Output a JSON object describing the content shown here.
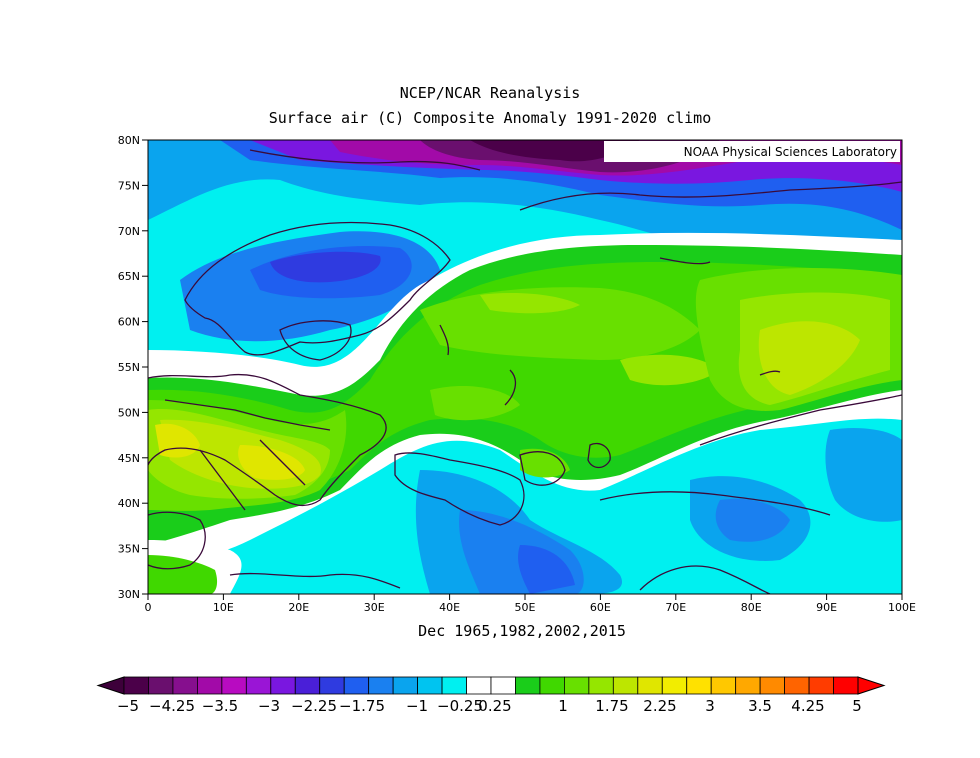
{
  "title_line1": "NCEP/NCAR Reanalysis",
  "title_line2": "Surface air (C) Composite Anomaly 1991-2020 climo",
  "source_label": "NOAA Physical Sciences Laboratory",
  "subtitle": "Dec 1965,1982,2002,2015",
  "lat_labels": [
    "80N",
    "75N",
    "70N",
    "65N",
    "60N",
    "55N",
    "50N",
    "45N",
    "40N",
    "35N",
    "30N"
  ],
  "lon_labels": [
    "0",
    "10E",
    "20E",
    "30E",
    "40E",
    "50E",
    "60E",
    "70E",
    "80E",
    "90E",
    "100E"
  ],
  "colorbar": {
    "labels": [
      "-5",
      "-4.25",
      "-3.5",
      "-3",
      "-2.25",
      "-1.75",
      "-1",
      "-0.25",
      "0.25",
      "1",
      "1.75",
      "2.25",
      "3",
      "3.5",
      "4.25",
      "5"
    ],
    "colors": [
      "#4b0049",
      "#6a0f6e",
      "#860f8e",
      "#a20aa8",
      "#b80bc1",
      "#9a15d6",
      "#7a17e0",
      "#4a1fd8",
      "#2f3be0",
      "#1f5ff0",
      "#1a80f0",
      "#0aa4ee",
      "#00c4f0",
      "#00f0f0",
      "#ffffff",
      "#ffffff",
      "#1acd1a",
      "#40d800",
      "#68e000",
      "#95e600",
      "#bde600",
      "#e0e600",
      "#f2ed00",
      "#ffe100",
      "#ffc800",
      "#ffa800",
      "#ff8a00",
      "#ff6400",
      "#ff3c00",
      "#ff0000"
    ]
  }
}
